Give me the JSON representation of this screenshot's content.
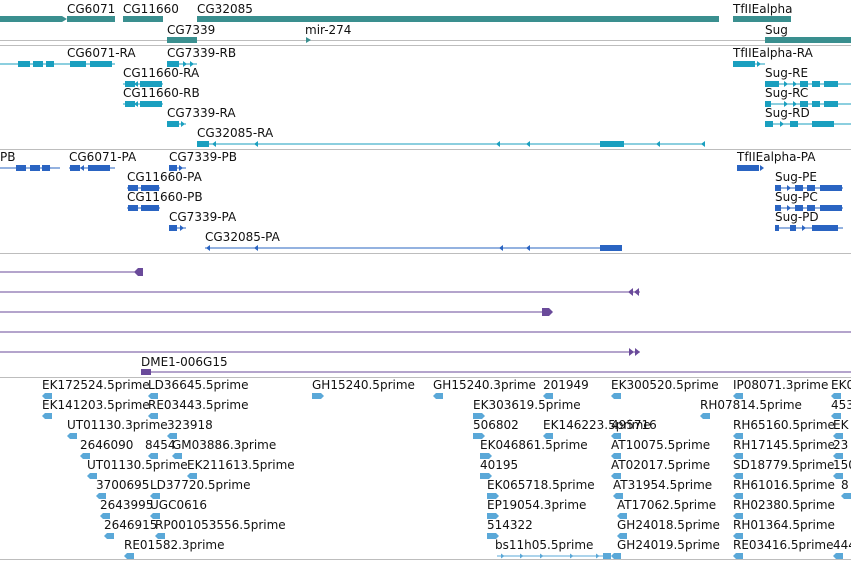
{
  "colors": {
    "gene": "#3a8f8f",
    "rna": "#1a9fbf",
    "protein": "#2a64c2",
    "cdna": "#6a4a9a",
    "est": "#5aa8d8"
  },
  "tracks": {
    "genes": {
      "labels": [
        "CG6071",
        "CG11660",
        "CG32085",
        "TfIIEalpha",
        "CG7339",
        "mir-274",
        "Sug"
      ]
    },
    "transcripts": {
      "labels": [
        "CG6071-RA",
        "CG7339-RB",
        "TfIIEalpha-RA",
        "CG11660-RA",
        "Sug-RE",
        "CG11660-RB",
        "Sug-RC",
        "CG7339-RA",
        "Sug-RD",
        "CG32085-RA"
      ]
    },
    "proteins": {
      "labels": [
        "PB",
        "CG6071-PA",
        "CG7339-PB",
        "TfIIEalpha-PA",
        "CG11660-PA",
        "Sug-PE",
        "CG11660-PB",
        "Sug-PC",
        "CG7339-PA",
        "Sug-PD",
        "CG32085-PA"
      ]
    },
    "clones": {
      "labels": [
        "DME1-006G15"
      ]
    },
    "ests": {
      "labels": [
        "EK172524.5prime",
        "LD36645.5prime",
        "GH15240.5prime",
        "GH15240.3prime",
        "201949",
        "EK300520.5prime",
        "IP08071.3prime",
        "EK0",
        "EK141203.5prime",
        "RE03443.5prime",
        "EK303619.5prime",
        "RH07814.5prime",
        "453",
        "UT01130.3prime",
        "323918",
        "506802",
        "EK146223.5prime",
        "495716",
        "RH65160.5prime",
        "EK",
        "2646090",
        "8454",
        "GM03886.3prime",
        "EK046861.5prime",
        "AT10075.5prime",
        "RH17145.5prime",
        "23",
        "UT01130.5prime",
        "EK211613.5prime",
        "40195",
        "AT02017.5prime",
        "SD18779.5prime",
        "150",
        "3700695",
        "LD37720.5prime",
        "EK065718.5prime",
        "AT31954.5prime",
        "RH61016.5prime",
        "8",
        "2643995",
        "UGC0616",
        "EP19054.3prime",
        "AT17062.5prime",
        "RH02380.5prime",
        "2646915",
        "RP001053556.5prime",
        "514322",
        "GH24018.5prime",
        "RH01364.5prime",
        "RE01582.3prime",
        "bs11h05.5prime",
        "GH24019.5prime",
        "RE03416.5prime",
        "444"
      ]
    }
  }
}
